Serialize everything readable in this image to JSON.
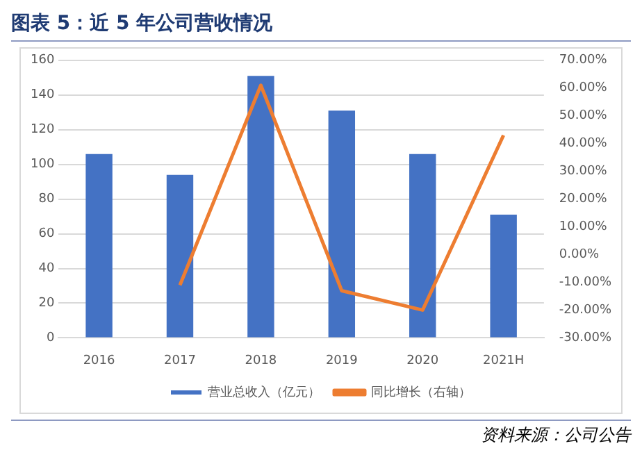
{
  "chart_data": {
    "type": "bar",
    "title": "图表 5：近 5 年公司营收情况",
    "categories": [
      "2016",
      "2017",
      "2018",
      "2019",
      "2020",
      "2021H"
    ],
    "series": [
      {
        "name": "营业总收入（亿元）",
        "color": "#4472c4",
        "values": [
          106,
          94,
          151,
          131,
          106,
          71
        ]
      },
      {
        "name": "同比增长（右轴）",
        "type": "line",
        "axis": "y2",
        "color": "#ed7d31",
        "values": [
          null,
          -11,
          61,
          -13,
          -20,
          43
        ]
      }
    ],
    "ylim": [
      0,
      160
    ],
    "yticks": [
      0,
      20,
      40,
      60,
      80,
      100,
      120,
      140,
      160
    ],
    "y2lim": [
      -30,
      70
    ],
    "y2ticks": [
      {
        "value": -30,
        "label": "-30.00%"
      },
      {
        "value": -20,
        "label": "-20.00%"
      },
      {
        "value": -10,
        "label": "-10.00%"
      },
      {
        "value": 0,
        "label": "0.00%"
      },
      {
        "value": 10,
        "label": "10.00%"
      },
      {
        "value": 20,
        "label": "20.00%"
      },
      {
        "value": 30,
        "label": "30.00%"
      },
      {
        "value": 40,
        "label": "40.00%"
      },
      {
        "value": 50,
        "label": "50.00%"
      },
      {
        "value": 60,
        "label": "60.00%"
      },
      {
        "value": 70,
        "label": "70.00%"
      }
    ],
    "grid": "y",
    "legend": "bottom",
    "marker": "none",
    "annotations": [
      "资料来源：公司公告"
    ]
  }
}
